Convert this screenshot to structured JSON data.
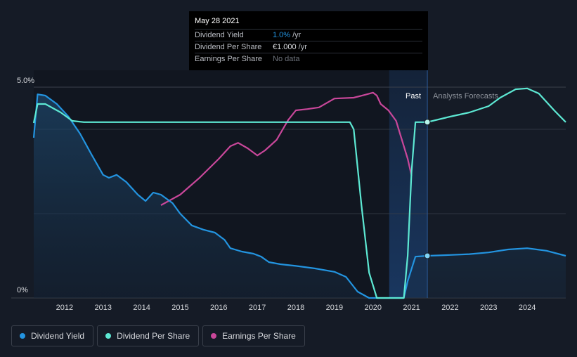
{
  "tooltip": {
    "date": "May 28 2021",
    "rows": [
      {
        "label": "Dividend Yield",
        "value": "1.0%",
        "unit": "/yr"
      },
      {
        "label": "Dividend Per Share",
        "value": "€1.000",
        "unit": "/yr"
      },
      {
        "label": "Earnings Per Share",
        "value": "No data",
        "unit": ""
      }
    ]
  },
  "legend": [
    {
      "label": "Dividend Yield",
      "color": "#2394e0"
    },
    {
      "label": "Dividend Per Share",
      "color": "#5de8d3"
    },
    {
      "label": "Earnings Per Share",
      "color": "#c9479a"
    }
  ],
  "colors": {
    "background": "#151b26",
    "yield": "#2394e0",
    "dps": "#5de8d3",
    "eps": "#c9479a",
    "highlight": "#1a3a66"
  },
  "chart_data": {
    "type": "line",
    "region_labels": {
      "past": "Past",
      "forecast": "Analysts Forecasts"
    },
    "y_tick_labels": [
      "5.0%",
      "0%"
    ],
    "ylim": [
      0,
      5.0
    ],
    "xlim": [
      2011.2,
      2025.0
    ],
    "x_ticks": [
      2012,
      2013,
      2014,
      2015,
      2016,
      2017,
      2018,
      2019,
      2020,
      2021,
      2022,
      2023,
      2024
    ],
    "past_forecast_boundary": 2021.41,
    "past_highlight_start": 2020.42,
    "grid": true,
    "legend_placement": "bottom-left",
    "series": [
      {
        "name": "Dividend Yield",
        "points": [
          [
            2011.2,
            3.8
          ],
          [
            2011.3,
            4.83
          ],
          [
            2011.5,
            4.8
          ],
          [
            2011.8,
            4.6
          ],
          [
            2012.1,
            4.3
          ],
          [
            2012.4,
            3.9
          ],
          [
            2012.7,
            3.4
          ],
          [
            2013.0,
            2.92
          ],
          [
            2013.15,
            2.85
          ],
          [
            2013.35,
            2.92
          ],
          [
            2013.6,
            2.75
          ],
          [
            2013.9,
            2.45
          ],
          [
            2014.1,
            2.3
          ],
          [
            2014.3,
            2.5
          ],
          [
            2014.5,
            2.45
          ],
          [
            2014.8,
            2.25
          ],
          [
            2015.0,
            2.0
          ],
          [
            2015.3,
            1.72
          ],
          [
            2015.6,
            1.62
          ],
          [
            2015.9,
            1.55
          ],
          [
            2016.15,
            1.38
          ],
          [
            2016.3,
            1.18
          ],
          [
            2016.6,
            1.1
          ],
          [
            2016.9,
            1.05
          ],
          [
            2017.1,
            0.98
          ],
          [
            2017.3,
            0.85
          ],
          [
            2017.6,
            0.8
          ],
          [
            2018.0,
            0.76
          ],
          [
            2018.5,
            0.7
          ],
          [
            2019.0,
            0.62
          ],
          [
            2019.3,
            0.5
          ],
          [
            2019.6,
            0.15
          ],
          [
            2019.9,
            0.0
          ],
          [
            2020.8,
            0.0
          ],
          [
            2020.9,
            0.4
          ],
          [
            2021.1,
            0.98
          ],
          [
            2021.41,
            1.0
          ],
          [
            2022.0,
            1.02
          ],
          [
            2022.5,
            1.04
          ],
          [
            2023.0,
            1.08
          ],
          [
            2023.5,
            1.15
          ],
          [
            2024.0,
            1.18
          ],
          [
            2024.5,
            1.12
          ],
          [
            2025.0,
            1.0
          ]
        ]
      },
      {
        "name": "Dividend Per Share",
        "points": [
          [
            2011.2,
            4.15
          ],
          [
            2011.3,
            4.6
          ],
          [
            2011.5,
            4.6
          ],
          [
            2011.9,
            4.4
          ],
          [
            2012.2,
            4.2
          ],
          [
            2012.5,
            4.17
          ],
          [
            2019.4,
            4.17
          ],
          [
            2019.5,
            4.0
          ],
          [
            2019.7,
            2.2
          ],
          [
            2019.9,
            0.6
          ],
          [
            2020.1,
            0.0
          ],
          [
            2020.8,
            0.0
          ],
          [
            2020.9,
            1.0
          ],
          [
            2021.0,
            3.0
          ],
          [
            2021.1,
            4.17
          ],
          [
            2021.41,
            4.17
          ],
          [
            2022.0,
            4.3
          ],
          [
            2022.5,
            4.4
          ],
          [
            2023.0,
            4.55
          ],
          [
            2023.3,
            4.75
          ],
          [
            2023.7,
            4.95
          ],
          [
            2024.0,
            4.97
          ],
          [
            2024.3,
            4.85
          ],
          [
            2024.7,
            4.45
          ],
          [
            2025.0,
            4.17
          ]
        ]
      },
      {
        "name": "Earnings Per Share",
        "points": [
          [
            2014.5,
            2.2
          ],
          [
            2015.0,
            2.45
          ],
          [
            2015.5,
            2.85
          ],
          [
            2016.0,
            3.3
          ],
          [
            2016.3,
            3.6
          ],
          [
            2016.5,
            3.68
          ],
          [
            2016.75,
            3.55
          ],
          [
            2017.0,
            3.38
          ],
          [
            2017.2,
            3.5
          ],
          [
            2017.5,
            3.75
          ],
          [
            2017.8,
            4.22
          ],
          [
            2018.0,
            4.45
          ],
          [
            2018.3,
            4.48
          ],
          [
            2018.6,
            4.52
          ],
          [
            2019.0,
            4.73
          ],
          [
            2019.5,
            4.75
          ],
          [
            2019.8,
            4.82
          ],
          [
            2020.0,
            4.87
          ],
          [
            2020.1,
            4.8
          ],
          [
            2020.2,
            4.6
          ],
          [
            2020.4,
            4.45
          ],
          [
            2020.6,
            4.2
          ],
          [
            2020.9,
            3.3
          ],
          [
            2021.0,
            2.9
          ]
        ]
      }
    ]
  }
}
